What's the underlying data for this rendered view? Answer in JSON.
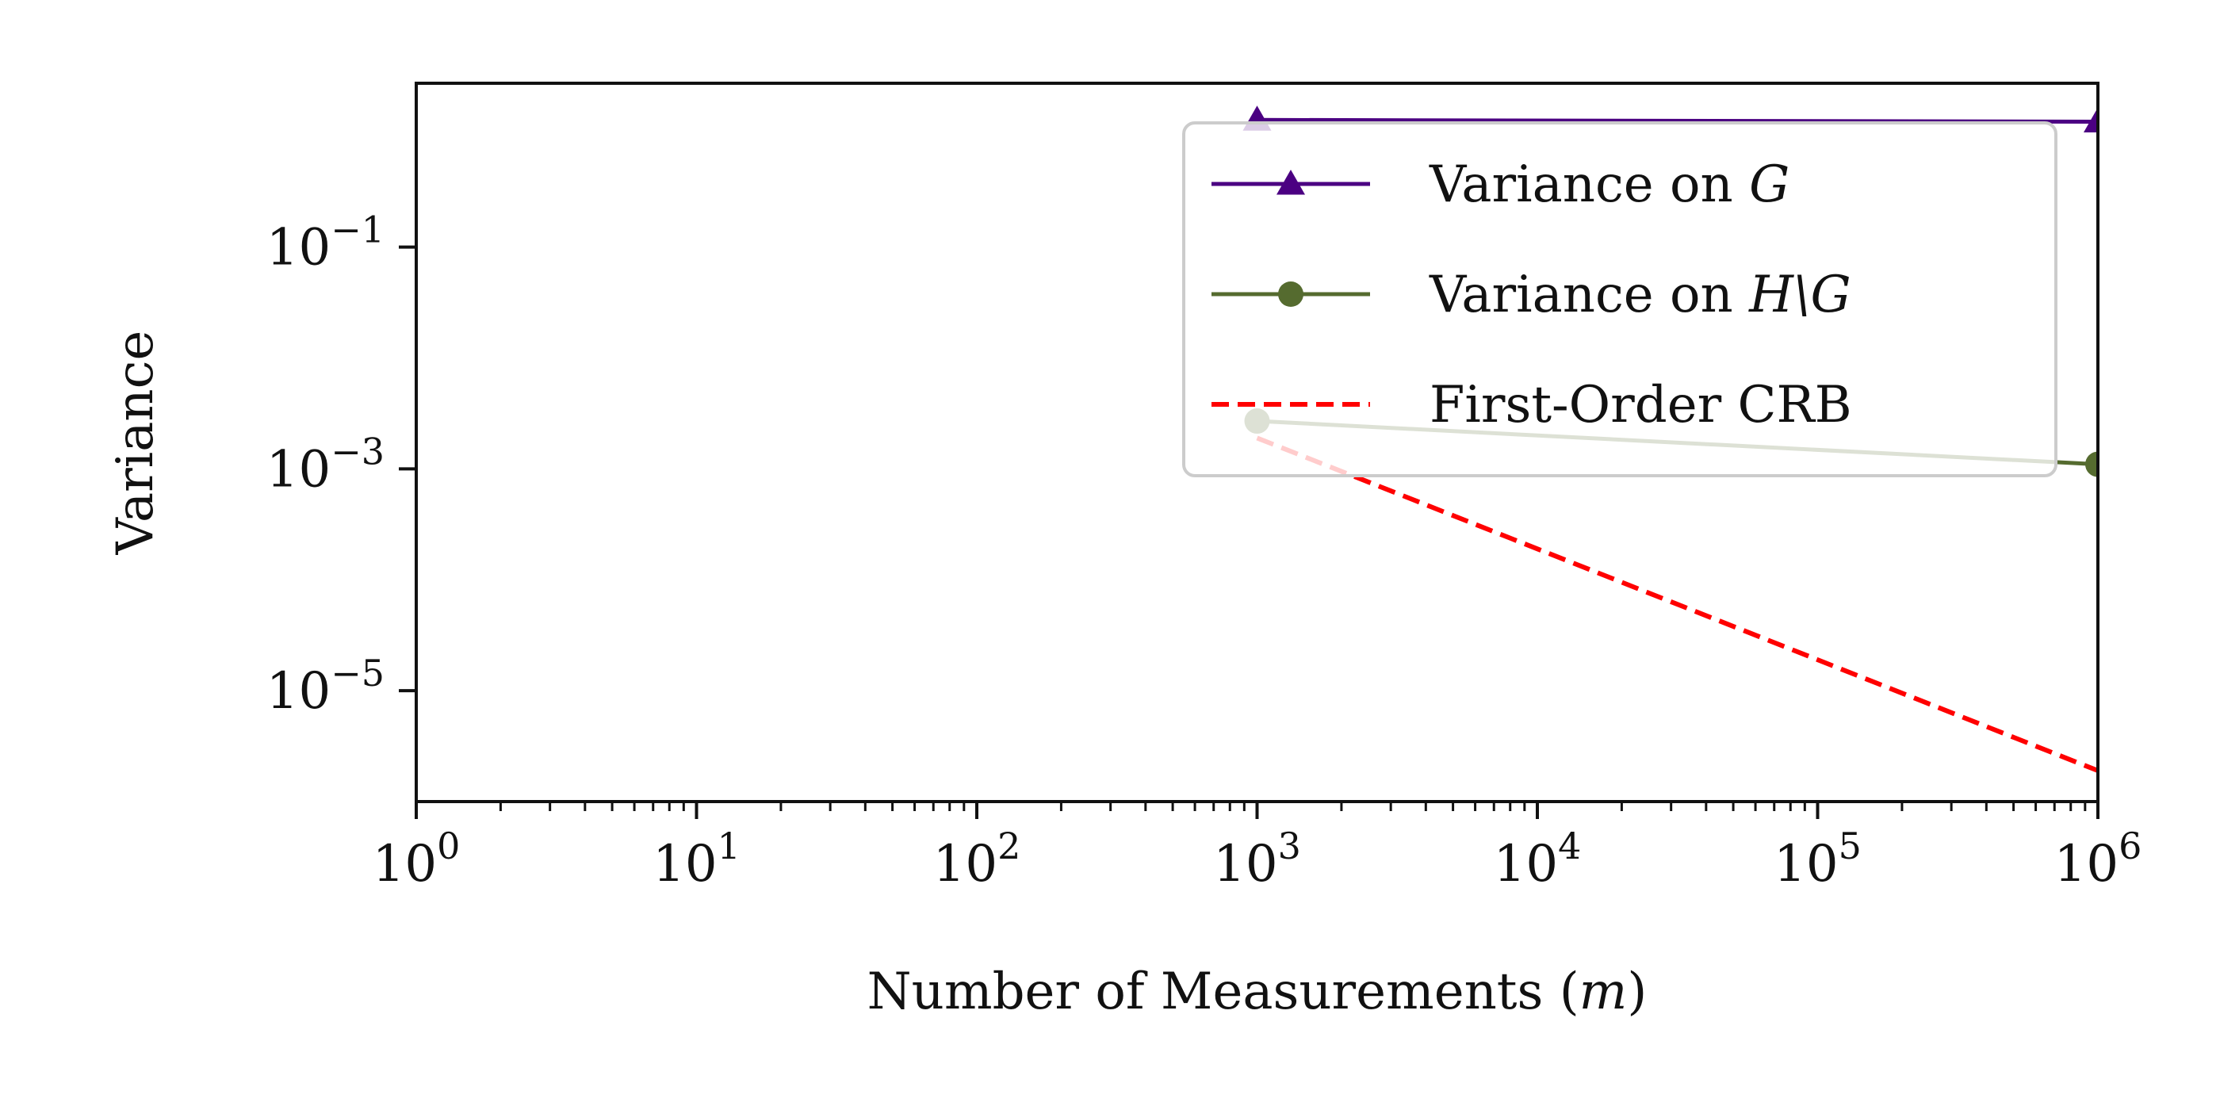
{
  "chart_data": {
    "type": "line",
    "xlabel": "Number of Measurements (m)",
    "ylabel": "Variance",
    "xscale": "log",
    "yscale": "log",
    "xlim": [
      1,
      1000000
    ],
    "ylim": [
      1e-06,
      3
    ],
    "x_ticks": [
      1,
      10,
      100,
      1000,
      10000,
      100000,
      1000000
    ],
    "x_tick_labels": [
      "10^0",
      "10^1",
      "10^2",
      "10^3",
      "10^4",
      "10^5",
      "10^6"
    ],
    "y_ticks": [
      1e-05,
      0.001,
      0.1
    ],
    "y_tick_labels": [
      "10^-5",
      "10^-3",
      "10^-1"
    ],
    "grid": false,
    "legend_position": "top-right",
    "series": [
      {
        "name": "Variance on G",
        "color": "#4b0082",
        "marker": "triangle",
        "linestyle": "solid",
        "x": [
          1000,
          1000000
        ],
        "y": [
          1.4,
          1.35
        ]
      },
      {
        "name": "Variance on H\\G",
        "color": "#556b2f",
        "marker": "circle",
        "linestyle": "solid",
        "x": [
          1000,
          1000000
        ],
        "y": [
          0.0027,
          0.0011
        ]
      },
      {
        "name": "First-Order CRB",
        "color": "#ff0000",
        "marker": "none",
        "linestyle": "dashed",
        "x": [
          1000,
          1000000
        ],
        "y": [
          0.0019,
          1.9e-06
        ]
      }
    ]
  }
}
